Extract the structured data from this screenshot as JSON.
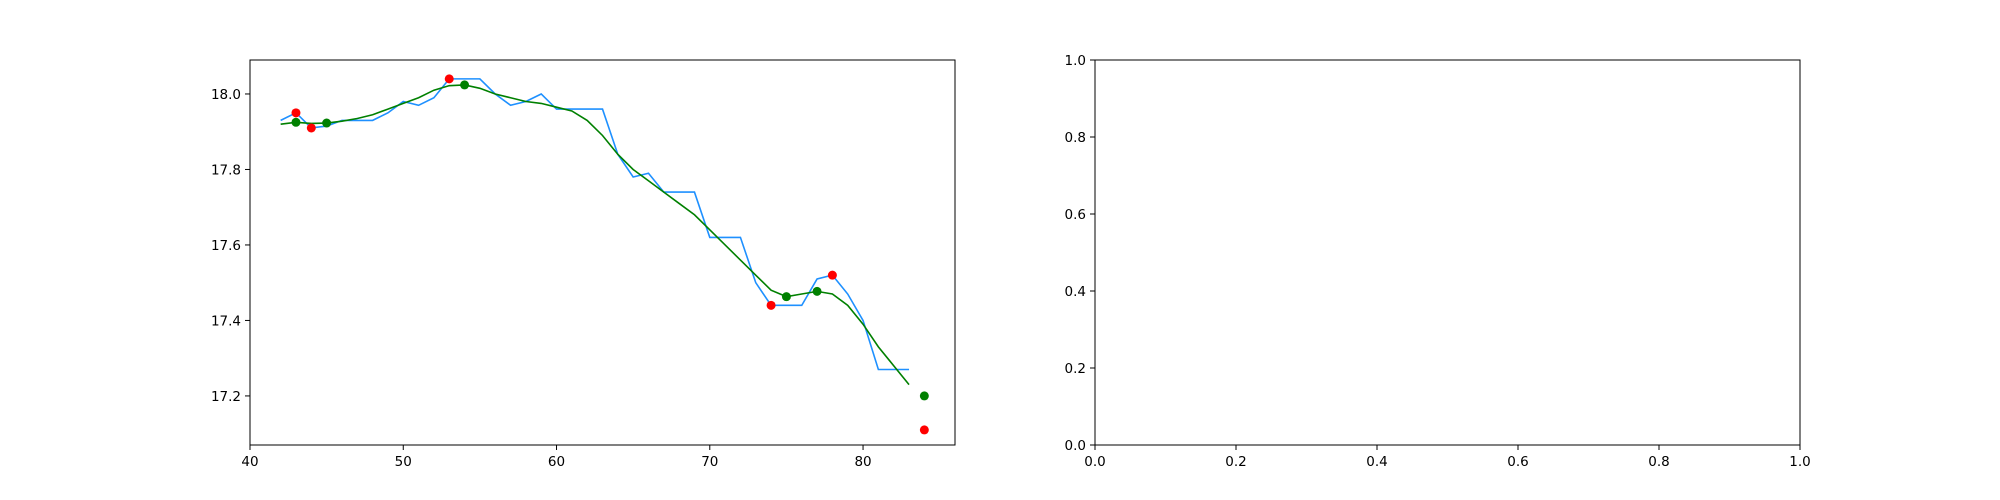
{
  "colors": {
    "raw_line": "#1e90ff",
    "smooth_line": "#008000",
    "red_points": "#ff0000",
    "green_points": "#008000",
    "axes": "#000000",
    "background": "#ffffff"
  },
  "chart_data": [
    {
      "type": "line",
      "title": "",
      "xlabel": "",
      "ylabel": "",
      "xlim": [
        40,
        86
      ],
      "ylim": [
        17.07,
        18.09
      ],
      "x_ticks": [
        40,
        50,
        60,
        70,
        80
      ],
      "y_ticks": [
        17.2,
        17.4,
        17.6,
        17.8,
        18.0
      ],
      "x_tick_labels": [
        "40",
        "50",
        "60",
        "70",
        "80"
      ],
      "y_tick_labels": [
        "17.2",
        "17.4",
        "17.6",
        "17.8",
        "18.0"
      ],
      "grid": false,
      "series": [
        {
          "kind": "line",
          "color": "#1e90ff",
          "x": [
            42,
            43,
            44,
            45,
            46,
            47,
            48,
            49,
            50,
            51,
            52,
            53,
            54,
            55,
            56,
            57,
            58,
            59,
            60,
            61,
            62,
            63,
            64,
            65,
            66,
            67,
            68,
            69,
            70,
            71,
            72,
            73,
            74,
            75,
            76,
            77,
            78,
            79,
            80,
            81,
            82,
            83
          ],
          "y": [
            17.93,
            17.95,
            17.91,
            17.915,
            17.93,
            17.93,
            17.93,
            17.95,
            17.98,
            17.97,
            17.99,
            18.04,
            18.04,
            18.04,
            18.0,
            17.97,
            17.98,
            18.0,
            17.96,
            17.96,
            17.96,
            17.96,
            17.84,
            17.78,
            17.79,
            17.74,
            17.74,
            17.74,
            17.62,
            17.62,
            17.62,
            17.5,
            17.44,
            17.44,
            17.44,
            17.51,
            17.52,
            17.47,
            17.4,
            17.27,
            17.27,
            17.27
          ]
        },
        {
          "kind": "line",
          "color": "#008000",
          "x": [
            42,
            43,
            44,
            45,
            46,
            47,
            48,
            49,
            50,
            51,
            52,
            53,
            54,
            55,
            56,
            57,
            58,
            59,
            60,
            61,
            62,
            63,
            64,
            65,
            66,
            67,
            68,
            69,
            70,
            71,
            72,
            73,
            74,
            75,
            76,
            77,
            78,
            79,
            80,
            81,
            82,
            83
          ],
          "y": [
            17.92,
            17.925,
            17.922,
            17.923,
            17.928,
            17.935,
            17.945,
            17.96,
            17.975,
            17.99,
            18.01,
            18.022,
            18.024,
            18.015,
            18.0,
            17.99,
            17.98,
            17.975,
            17.965,
            17.955,
            17.93,
            17.89,
            17.84,
            17.8,
            17.77,
            17.74,
            17.71,
            17.68,
            17.64,
            17.6,
            17.56,
            17.52,
            17.48,
            17.463,
            17.47,
            17.477,
            17.47,
            17.44,
            17.39,
            17.33,
            17.28,
            17.23
          ]
        },
        {
          "kind": "scatter",
          "color": "#ff0000",
          "x": [
            43,
            44,
            53,
            74,
            78,
            84
          ],
          "y": [
            17.95,
            17.91,
            18.04,
            17.44,
            17.52,
            17.11
          ]
        },
        {
          "kind": "scatter",
          "color": "#008000",
          "x": [
            43,
            45,
            54,
            75,
            77,
            84
          ],
          "y": [
            17.925,
            17.923,
            18.024,
            17.463,
            17.477,
            17.2
          ]
        }
      ]
    },
    {
      "type": "line",
      "title": "",
      "xlabel": "",
      "ylabel": "",
      "xlim": [
        0,
        1
      ],
      "ylim": [
        0,
        1
      ],
      "x_ticks": [
        0,
        0.2,
        0.4,
        0.6,
        0.8,
        1.0
      ],
      "y_ticks": [
        0,
        0.2,
        0.4,
        0.6,
        0.8,
        1.0
      ],
      "x_tick_labels": [
        "0.0",
        "0.2",
        "0.4",
        "0.6",
        "0.8",
        "1.0"
      ],
      "y_tick_labels": [
        "0.0",
        "0.2",
        "0.4",
        "0.6",
        "0.8",
        "1.0"
      ],
      "grid": false,
      "series": []
    }
  ]
}
